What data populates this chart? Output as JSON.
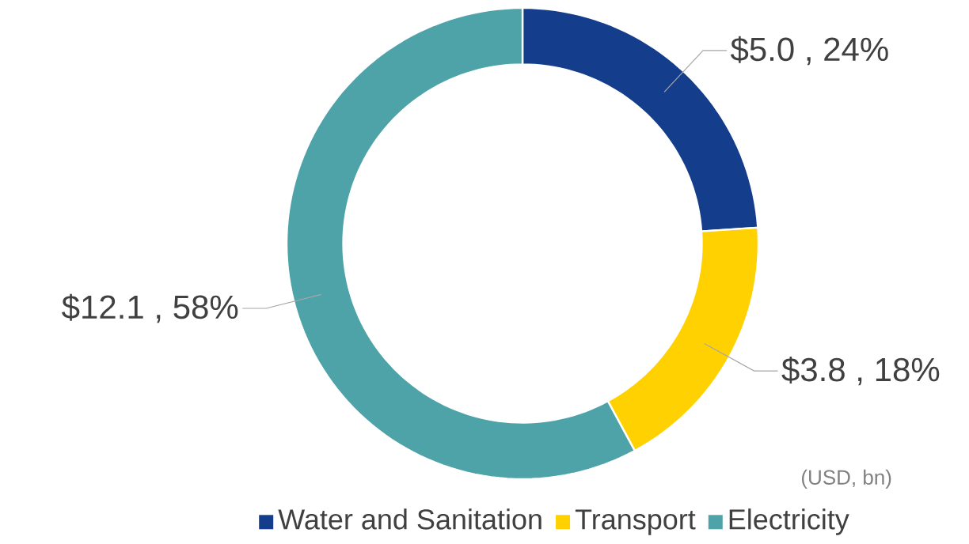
{
  "chart_data": {
    "type": "donut",
    "categories": [
      "Water and Sanitation",
      "Transport",
      "Electricity"
    ],
    "values": [
      5.0,
      3.8,
      12.1
    ],
    "colors": [
      "#143d8c",
      "#ffd100",
      "#4ea3a8"
    ],
    "value_labels": [
      "$5.0 , 24%",
      "$3.8 , 18%",
      "$12.1 , 58%"
    ],
    "annotations": [
      "(USD, bn)"
    ],
    "legend": "bottom"
  }
}
